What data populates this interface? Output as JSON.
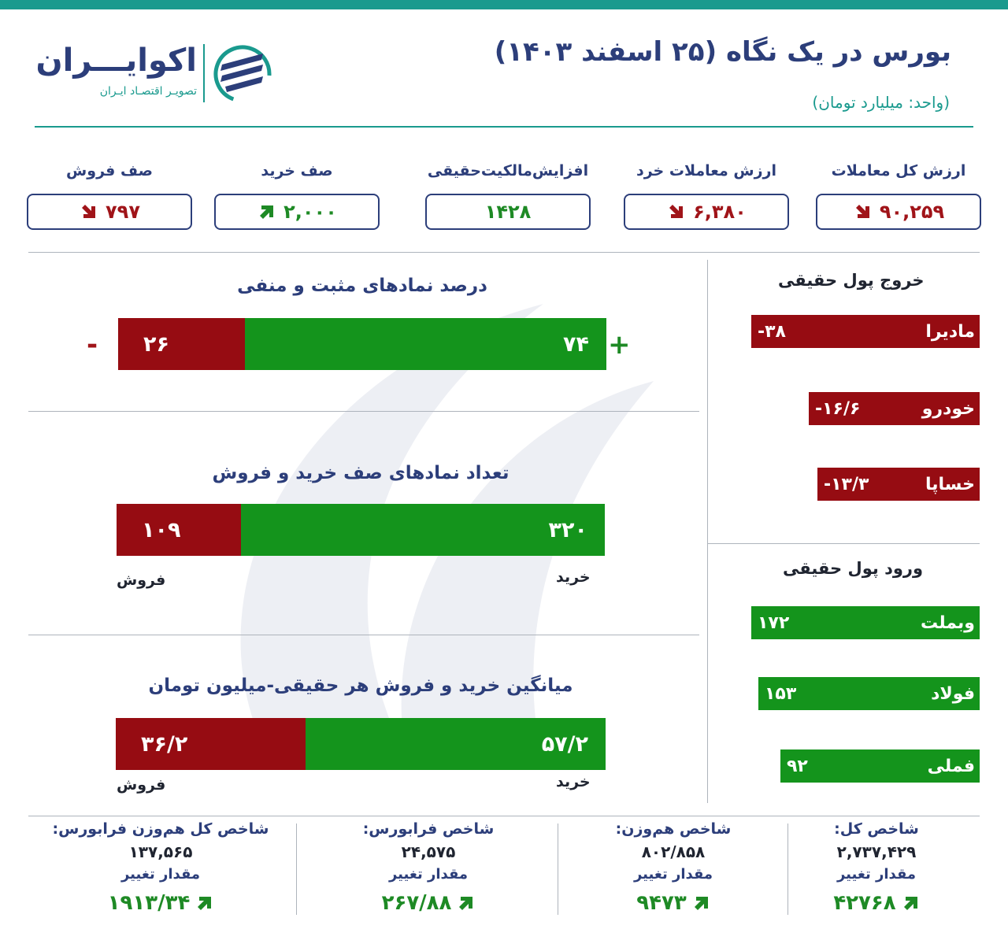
{
  "header": {
    "title": "بورس در یک نگاه (۲۵ اسفند ۱۴۰۳)",
    "unit": "(واحد: میلیارد تومان)",
    "logo_name": "اکوایـــران",
    "logo_subtitle": "تصویـر اقتصـاد ایـران"
  },
  "stats": [
    {
      "label": "ارزش کل معاملات",
      "value": "۹۰,۲۵۹",
      "direction": "down",
      "color": "#a01419"
    },
    {
      "label": "ارزش معاملات خرد",
      "value": "۶,۳۸۰",
      "direction": "down",
      "color": "#a01419"
    },
    {
      "label": "افزایش‌مالکیت‌حقیقی",
      "value": "۱۴۲۸",
      "direction": "none",
      "color": "#1e8a25"
    },
    {
      "label": "صف خرید",
      "value": "۲,۰۰۰",
      "direction": "up",
      "color": "#1e8a25"
    },
    {
      "label": "صف فروش",
      "value": "۷۹۷",
      "direction": "down",
      "color": "#a01419"
    }
  ],
  "sections": {
    "positive_negative": {
      "title": "درصد نمادهای مثبت و منفی",
      "positive": 74,
      "negative": 26,
      "positive_label": "۷۴",
      "negative_label": "۲۶",
      "plus_sign": "+",
      "minus_sign": "-"
    },
    "queue_counts": {
      "title": "تعداد نمادهای صف خرید و فروش",
      "buy": 320,
      "sell": 109,
      "buy_label": "۳۲۰",
      "sell_label": "۱۰۹",
      "buy_caption": "خرید",
      "sell_caption": "فروش"
    },
    "avg_trade": {
      "title": "میانگین خرید و فروش هر حقیقی-میلیون تومان",
      "buy": 57.2,
      "sell": 36.2,
      "buy_label": "۵۷/۲",
      "sell_label": "۳۶/۲",
      "buy_caption": "خرید",
      "sell_caption": "فروش"
    }
  },
  "outflow": {
    "title": "خروج پول حقیقی",
    "items": [
      {
        "name": "مادیرا",
        "value": -38,
        "label": "-۳۸"
      },
      {
        "name": "خودرو",
        "value": -16.6,
        "label": "-۱۶/۶"
      },
      {
        "name": "خساپا",
        "value": -13.3,
        "label": "-۱۳/۳"
      }
    ]
  },
  "inflow": {
    "title": "ورود پول حقیقی",
    "items": [
      {
        "name": "وبملت",
        "value": 172,
        "label": "۱۷۲"
      },
      {
        "name": "فولاد",
        "value": 153,
        "label": "۱۵۳"
      },
      {
        "name": "فملی",
        "value": 92,
        "label": "۹۲"
      }
    ]
  },
  "indices": [
    {
      "name": "شاخص کل:",
      "value": "۲,۷۳۷,۴۲۹",
      "change_label": "مقدار تغییر",
      "change": "۴۲۷۶۸",
      "direction": "up"
    },
    {
      "name": "شاخص هم‌وزن:",
      "value": "۸۰۲/۸۵۸",
      "change_label": "مقدار تغییر",
      "change": "۹۴۷۳",
      "direction": "up"
    },
    {
      "name": "شاخص فرابورس:",
      "value": "۲۴,۵۷۵",
      "change_label": "مقدار تغییر",
      "change": "۲۶۷/۸۸",
      "direction": "up"
    },
    {
      "name": "شاخص کل هم‌وزن فرابورس:",
      "value": "۱۳۷,۵۶۵",
      "change_label": "مقدار تغییر",
      "change": "۱۹۱۳/۳۴",
      "direction": "up"
    }
  ],
  "colors": {
    "accent": "#1a9a8e",
    "brand_navy": "#2c3e7a",
    "bar_red": "#960c12",
    "bar_green": "#14941c",
    "text_red": "#a01419",
    "text_green": "#1e8a25"
  },
  "icons": {
    "up": "arrow-up-right-icon",
    "down": "arrow-down-right-icon"
  }
}
